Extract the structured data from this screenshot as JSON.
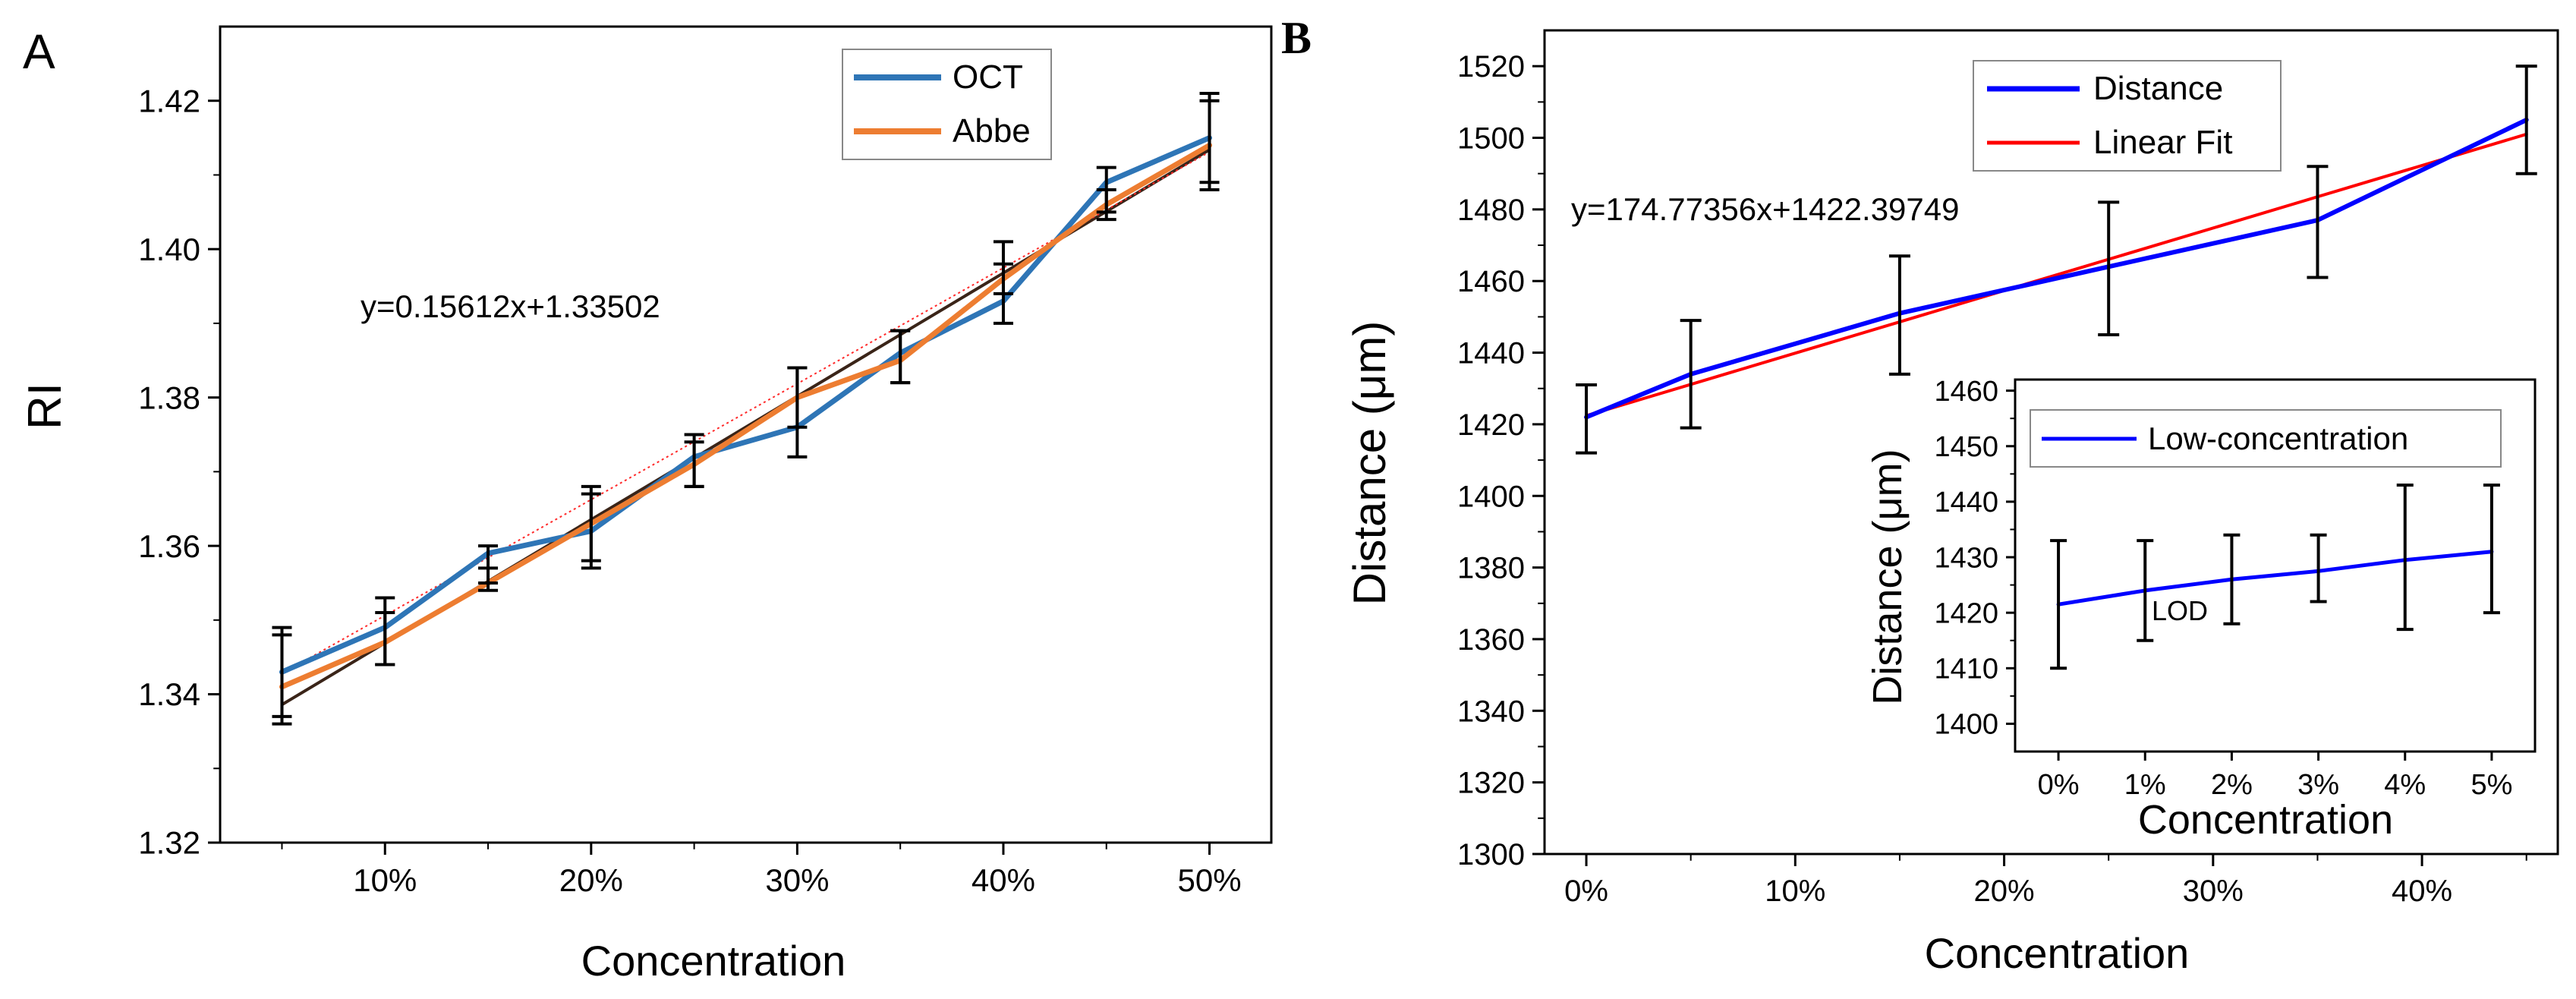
{
  "panelA": {
    "panel_label": "A",
    "equation": "y=0.15612x+1.33502",
    "chart_data": {
      "type": "line",
      "title": "",
      "xlabel": "Concentration",
      "ylabel": "RI",
      "xlim": [
        0.02,
        0.53
      ],
      "ylim": [
        1.32,
        1.43
      ],
      "x_ticks": [
        0.1,
        0.2,
        0.3,
        0.4,
        0.5
      ],
      "x_tick_labels": [
        "10%",
        "20%",
        "30%",
        "40%",
        "50%"
      ],
      "y_ticks": [
        1.32,
        1.34,
        1.36,
        1.38,
        1.4,
        1.42
      ],
      "y_tick_labels": [
        "1.32",
        "1.34",
        "1.36",
        "1.38",
        "1.40",
        "1.42"
      ],
      "series": [
        {
          "name": "OCT",
          "color": "#2e75b6",
          "x": [
            0.05,
            0.1,
            0.15,
            0.2,
            0.25,
            0.3,
            0.35,
            0.4,
            0.45,
            0.5
          ],
          "values": [
            1.343,
            1.349,
            1.359,
            1.362,
            1.372,
            1.376,
            1.386,
            1.393,
            1.409,
            1.415
          ],
          "err_upper": [
            1.349,
            1.353,
            1.36,
            1.368,
            1.375,
            1.384,
            1.389,
            1.401,
            1.411,
            1.421
          ],
          "err_lower": [
            1.337,
            1.344,
            1.355,
            1.358,
            1.368,
            1.372,
            1.382,
            1.39,
            1.405,
            1.409
          ]
        },
        {
          "name": "Abbe",
          "color": "#ed7d31",
          "x": [
            0.05,
            0.1,
            0.15,
            0.2,
            0.25,
            0.3,
            0.35,
            0.4,
            0.45,
            0.5
          ],
          "values": [
            1.341,
            1.347,
            1.355,
            1.363,
            1.371,
            1.38,
            1.385,
            1.396,
            1.406,
            1.414
          ],
          "err_upper": [
            1.348,
            1.351,
            1.357,
            1.367,
            1.374,
            1.384,
            1.389,
            1.398,
            1.408,
            1.42
          ],
          "err_lower": [
            1.336,
            1.344,
            1.354,
            1.357,
            1.368,
            1.376,
            1.382,
            1.394,
            1.404,
            1.408
          ]
        }
      ],
      "fit_lines": [
        {
          "name": "Linear fit (dark)",
          "color": "#3a2418",
          "x": [
            0.05,
            0.5
          ],
          "values": [
            1.3386,
            1.4134
          ]
        },
        {
          "name": "Linear fit (dotted)",
          "color": "#ff2a2a",
          "dotted": true,
          "x": [
            0.05,
            0.5
          ],
          "values": [
            1.3428,
            1.4131
          ]
        }
      ],
      "legend": {
        "position": "top-right",
        "entries": [
          "OCT",
          "Abbe"
        ]
      }
    }
  },
  "panelB": {
    "panel_label": "B",
    "equation": "y=174.77356x+1422.39749",
    "chart_data": {
      "type": "line",
      "title": "",
      "xlabel": "Concentration",
      "ylabel": "Distance (μm)",
      "xlim": [
        -0.02,
        0.465
      ],
      "ylim": [
        1300,
        1530
      ],
      "x_ticks": [
        0,
        0.1,
        0.2,
        0.3,
        0.4
      ],
      "x_tick_labels": [
        "0%",
        "10%",
        "20%",
        "30%",
        "40%"
      ],
      "y_ticks": [
        1300,
        1320,
        1340,
        1360,
        1380,
        1400,
        1420,
        1440,
        1460,
        1480,
        1500,
        1520
      ],
      "y_tick_labels": [
        "1300",
        "1320",
        "1340",
        "1360",
        "1380",
        "1400",
        "1420",
        "1440",
        "1460",
        "1480",
        "1500",
        "1520"
      ],
      "series": [
        {
          "name": "Distance",
          "color": "#0000ff",
          "x": [
            0,
            0.05,
            0.15,
            0.25,
            0.35,
            0.45
          ],
          "values": [
            1422,
            1434,
            1451,
            1464,
            1477,
            1505
          ],
          "err_upper": [
            1431,
            1449,
            1467,
            1482,
            1492,
            1520
          ],
          "err_lower": [
            1412,
            1419,
            1434,
            1445,
            1461,
            1490
          ]
        },
        {
          "name": "Linear Fit",
          "color": "#ff0000",
          "x": [
            0,
            0.45
          ],
          "values": [
            1422.4,
            1501.0
          ]
        }
      ],
      "legend": {
        "position": "top-right",
        "entries": [
          "Distance",
          "Linear Fit"
        ]
      }
    },
    "inset": {
      "annotation": "LOD",
      "chart_data": {
        "type": "line",
        "xlabel": "Concentration",
        "ylabel": "Distance (μm)",
        "xlim": [
          -0.005,
          0.055
        ],
        "ylim": [
          1395,
          1462
        ],
        "x_ticks": [
          0,
          0.01,
          0.02,
          0.03,
          0.04,
          0.05
        ],
        "x_tick_labels": [
          "0%",
          "1%",
          "2%",
          "3%",
          "4%",
          "5%"
        ],
        "y_ticks": [
          1400,
          1410,
          1420,
          1430,
          1440,
          1450,
          1460
        ],
        "y_tick_labels": [
          "1400",
          "1410",
          "1420",
          "1430",
          "1440",
          "1450",
          "1460"
        ],
        "series": [
          {
            "name": "Low-concentration",
            "color": "#0000ff",
            "x": [
              0,
              0.01,
              0.02,
              0.03,
              0.04,
              0.05
            ],
            "values": [
              1421.5,
              1424.0,
              1426.0,
              1427.5,
              1429.5,
              1431.0
            ],
            "err_upper": [
              1433,
              1433,
              1434,
              1434,
              1443,
              1443
            ],
            "err_lower": [
              1410,
              1415,
              1418,
              1422,
              1417,
              1420
            ]
          }
        ],
        "legend": {
          "position": "top",
          "entries": [
            "Low-concentration"
          ]
        }
      }
    }
  }
}
